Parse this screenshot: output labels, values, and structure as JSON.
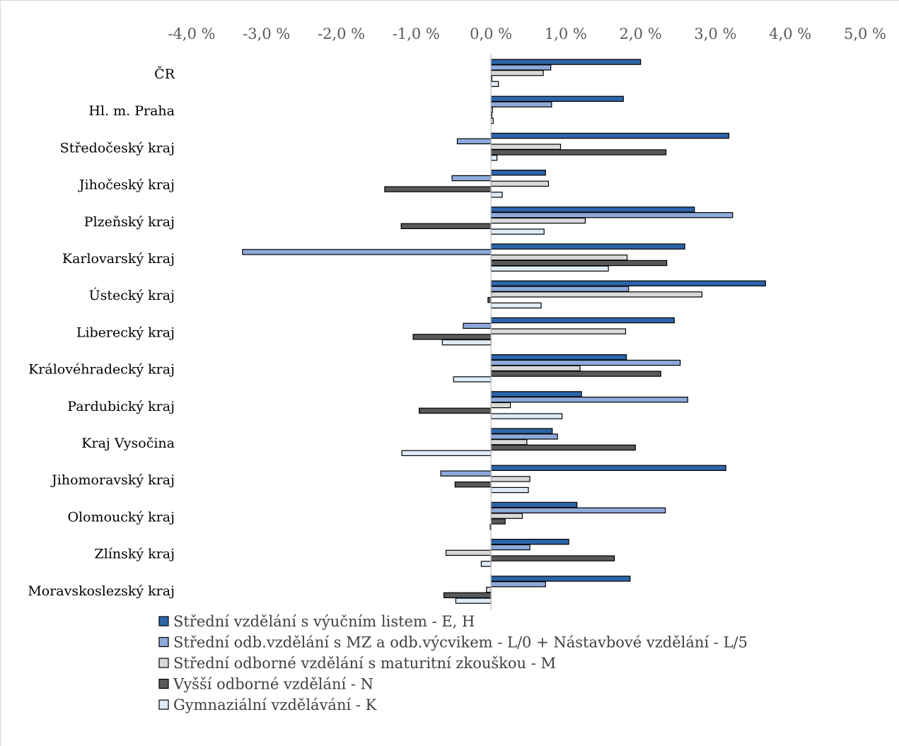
{
  "chart_data": {
    "type": "bar",
    "orientation": "horizontal",
    "xlim": [
      -4.0,
      5.0
    ],
    "x_ticks": [
      "-4,0 %",
      "-3,0 %",
      "-2,0 %",
      "-1,0 %",
      "0,0 %",
      "1,0 %",
      "2,0 %",
      "3,0 %",
      "4,0 %",
      "5,0 %"
    ],
    "x_axis_position": "top",
    "grid": false,
    "legend_position": "bottom",
    "categories": [
      "ČR",
      "Hl. m. Praha",
      "Středočeský kraj",
      "Jihočeský kraj",
      "Plzeňský kraj",
      "Karlovarský kraj",
      "Ústecký kraj",
      "Liberecký kraj",
      "Královéhradecký kraj",
      "Pardubický kraj",
      "Kraj Vysočina",
      "Jihomoravský kraj",
      "Olomoucký kraj",
      "Zlínský kraj",
      "Moravskoslezský kraj"
    ],
    "series": [
      {
        "name": "Střední vzdělání s výučním listem - E, H",
        "color": "#2e64a8",
        "values": [
          2.0,
          1.77,
          3.18,
          0.73,
          2.72,
          2.59,
          3.67,
          2.45,
          1.81,
          1.21,
          0.82,
          3.14,
          1.15,
          1.04,
          1.86
        ]
      },
      {
        "name": "Střední odb.vzdělání s MZ  a odb.výcvikem - L/0 + Nástavbové vzdělání - L/5",
        "color": "#8eaadb",
        "values": [
          0.8,
          0.81,
          -0.45,
          -0.52,
          3.23,
          -3.32,
          1.84,
          -0.37,
          2.53,
          2.63,
          0.89,
          -0.67,
          2.33,
          0.52,
          0.73
        ]
      },
      {
        "name": "Střední odborné vzdělání s maturitní zkouškou - M",
        "color": "#d9d9d9",
        "values": [
          0.7,
          0.02,
          0.93,
          0.77,
          1.26,
          1.82,
          2.82,
          1.8,
          1.19,
          0.26,
          0.48,
          0.52,
          0.42,
          -0.6,
          -0.06
        ]
      },
      {
        "name": "Vyšší odborné vzdělání - N",
        "color": "#595959",
        "values": [
          0.0,
          0.0,
          2.34,
          -1.42,
          -1.2,
          2.35,
          -0.04,
          -1.04,
          2.27,
          -0.96,
          1.93,
          -0.48,
          0.19,
          1.65,
          -0.63
        ]
      },
      {
        "name": "Gymnaziální vzdělávání - K",
        "color": "#deebf7",
        "values": [
          0.1,
          0.03,
          0.08,
          0.15,
          0.71,
          1.57,
          0.67,
          -0.65,
          -0.5,
          0.95,
          -1.19,
          0.5,
          -0.01,
          -0.13,
          -0.47
        ]
      }
    ]
  }
}
